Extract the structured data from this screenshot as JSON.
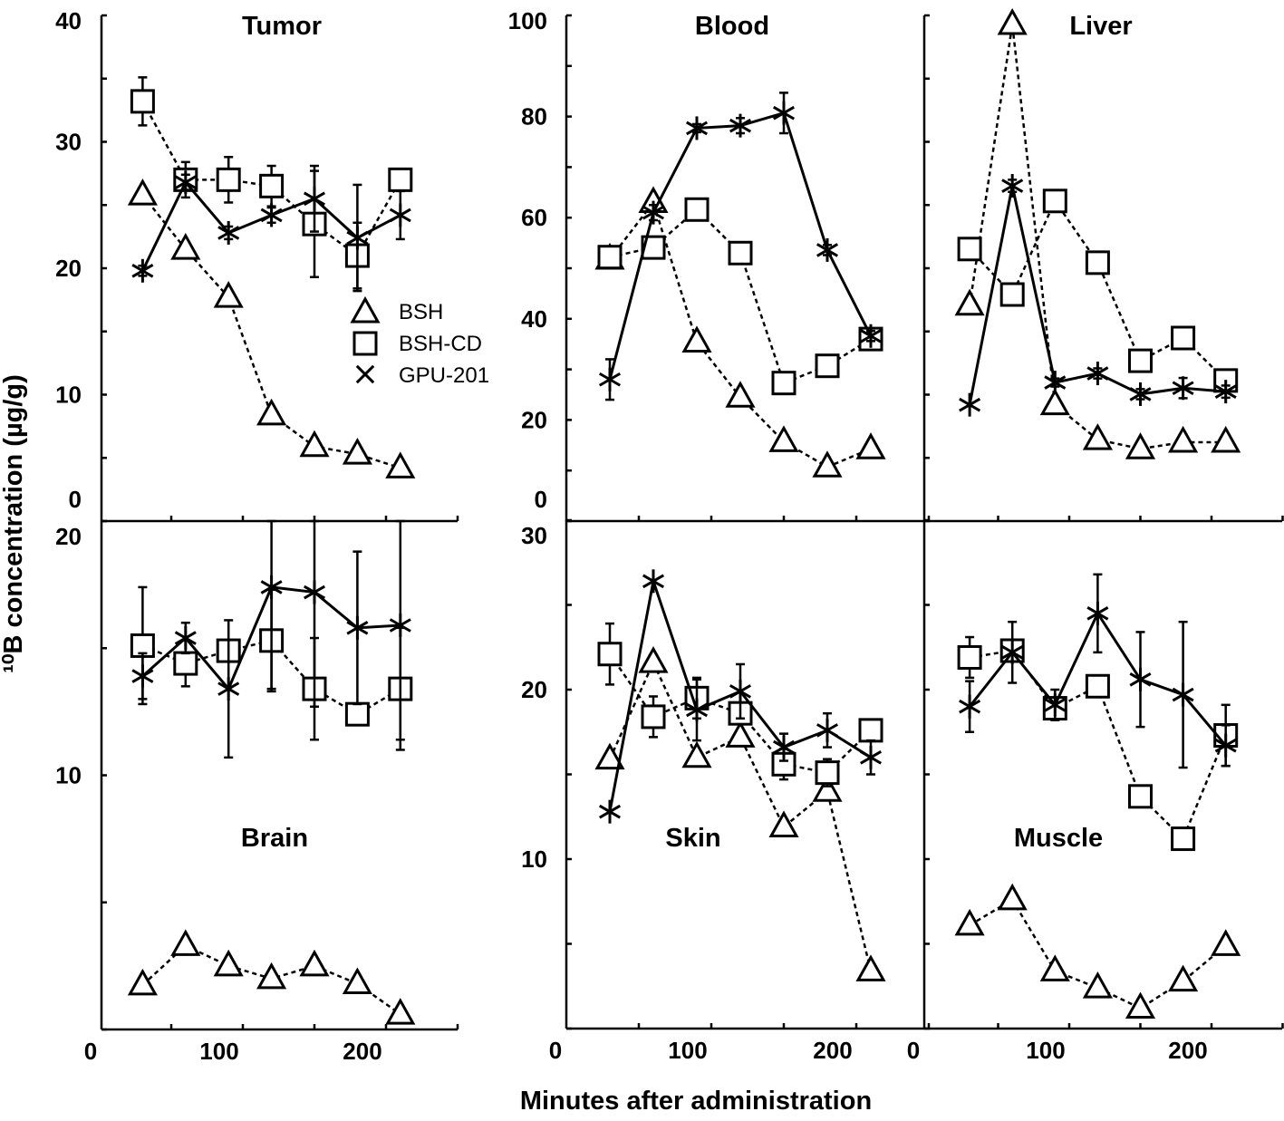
{
  "figure": {
    "ylabel": "¹⁰B concentration (µg/g)",
    "xlabel": "Minutes after administration",
    "legend": [
      "BSH",
      "BSH-CD",
      "GPU-201"
    ],
    "legend_placement": "inside Tumor panel, center-right",
    "line_color": "#000000",
    "background": "#ffffff"
  },
  "chart_data": [
    {
      "type": "line",
      "title": "Tumor",
      "xlim": [
        0,
        250
      ],
      "xticklabels": [
        "0",
        "100",
        "200"
      ],
      "ylim": [
        0,
        40
      ],
      "yticklabels": [
        "0",
        "10",
        "20",
        "30",
        "40"
      ],
      "x": [
        30,
        60,
        90,
        120,
        150,
        180,
        210
      ],
      "series": [
        {
          "name": "BSH",
          "marker": "triangle",
          "line": "dotted",
          "y": [
            25.8,
            21.5,
            17.7,
            8.4,
            5.9,
            5.3,
            4.2
          ],
          "err": [
            null,
            null,
            null,
            null,
            null,
            null,
            null
          ]
        },
        {
          "name": "BSH-CD",
          "marker": "square",
          "line": "dotted",
          "y": [
            33.2,
            27.0,
            27.0,
            26.5,
            23.5,
            21.0,
            27.0
          ],
          "err": [
            1.9,
            1.4,
            1.8,
            1.6,
            4.2,
            2.6,
            null
          ]
        },
        {
          "name": "GPU-201",
          "marker": "asterisk",
          "line": "solid",
          "y": [
            19.8,
            26.8,
            22.8,
            24.2,
            25.5,
            22.4,
            24.2
          ],
          "err": [
            0.4,
            0.6,
            0.5,
            0.6,
            2.6,
            4.2,
            1.9
          ]
        }
      ]
    },
    {
      "type": "line",
      "title": "Blood",
      "xlim": [
        0,
        250
      ],
      "xticklabels": [
        "0",
        "100",
        "200"
      ],
      "ylim": [
        0,
        100
      ],
      "yticklabels": [
        "0",
        "20",
        "40",
        "60",
        "80",
        "100"
      ],
      "x": [
        30,
        60,
        90,
        120,
        150,
        180,
        210
      ],
      "series": [
        {
          "name": "BSH",
          "marker": "triangle",
          "line": "dotted",
          "y": [
            51.8,
            63.0,
            35.4,
            24.5,
            15.7,
            10.7,
            14.3
          ],
          "err": [
            null,
            null,
            null,
            null,
            null,
            null,
            null
          ]
        },
        {
          "name": "BSH-CD",
          "marker": "square",
          "line": "dotted",
          "y": [
            52.2,
            54.1,
            61.6,
            53.0,
            27.3,
            30.7,
            36.0
          ],
          "err": [
            null,
            null,
            null,
            0.8,
            null,
            1.2,
            1.0
          ]
        },
        {
          "name": "GPU-201",
          "marker": "asterisk",
          "line": "solid",
          "y": [
            28.0,
            61.0,
            77.7,
            78.2,
            80.7,
            53.6,
            36.6
          ],
          "err": [
            4.0,
            1.5,
            0.8,
            1.5,
            4.0,
            1.0,
            1.0
          ]
        }
      ]
    },
    {
      "type": "line",
      "title": "Liver",
      "xlim": [
        0,
        250
      ],
      "xticklabels": [
        "0",
        "100",
        "200"
      ],
      "ylim": [
        0,
        100
      ],
      "yticklabels": [],
      "x": [
        30,
        60,
        90,
        120,
        150,
        180,
        210
      ],
      "series": [
        {
          "name": "BSH",
          "marker": "triangle",
          "line": "dotted",
          "y": [
            42.7,
            98.2,
            23.0,
            16.1,
            14.3,
            15.6,
            15.6
          ],
          "err": [
            null,
            null,
            null,
            null,
            null,
            null,
            null
          ]
        },
        {
          "name": "BSH-CD",
          "marker": "square",
          "line": "dotted",
          "y": [
            53.8,
            44.8,
            63.3,
            51.1,
            31.7,
            36.2,
            27.8
          ],
          "err": [
            null,
            null,
            null,
            1.2,
            2.0,
            null,
            null
          ]
        },
        {
          "name": "GPU-201",
          "marker": "asterisk",
          "line": "solid",
          "y": [
            23.0,
            66.3,
            27.4,
            29.2,
            25.1,
            26.3,
            25.6
          ],
          "err": [
            null,
            1.2,
            0.8,
            1.0,
            1.0,
            2.0,
            1.2
          ]
        }
      ]
    },
    {
      "type": "line",
      "title": "Brain",
      "xlim": [
        0,
        250
      ],
      "xticklabels": [
        "0",
        "100",
        "200"
      ],
      "ylim": [
        0,
        20
      ],
      "yticklabels": [
        "10",
        "20"
      ],
      "x": [
        30,
        60,
        90,
        120,
        150,
        180,
        210
      ],
      "series": [
        {
          "name": "BSH",
          "marker": "triangle",
          "line": "dotted",
          "y": [
            1.75,
            3.3,
            2.5,
            2.0,
            2.5,
            1.8,
            0.6
          ],
          "err": [
            null,
            null,
            null,
            null,
            null,
            null,
            null
          ]
        },
        {
          "name": "BSH-CD",
          "marker": "square",
          "line": "dotted",
          "y": [
            15.1,
            14.4,
            14.9,
            15.3,
            13.4,
            12.4,
            13.4
          ],
          "err": [
            2.3,
            0.9,
            null,
            2.0,
            2.0,
            null,
            2.4
          ]
        },
        {
          "name": "GPU-201",
          "marker": "asterisk",
          "line": "solid",
          "y": [
            13.9,
            15.4,
            13.4,
            17.4,
            17.2,
            15.8,
            15.9
          ],
          "err": [
            0.9,
            0.6,
            2.7,
            4.0,
            4.5,
            3.0,
            4.5
          ]
        }
      ]
    },
    {
      "type": "line",
      "title": "Skin",
      "xlim": [
        0,
        250
      ],
      "xticklabels": [
        "0",
        "100",
        "200"
      ],
      "ylim": [
        0,
        30
      ],
      "yticklabels": [
        "10",
        "20",
        "30"
      ],
      "x": [
        30,
        60,
        90,
        120,
        150,
        180,
        210
      ],
      "series": [
        {
          "name": "BSH",
          "marker": "triangle",
          "line": "dotted",
          "y": [
            15.9,
            21.6,
            16.0,
            17.2,
            11.9,
            14.0,
            3.4
          ],
          "err": [
            null,
            null,
            null,
            null,
            null,
            null,
            null
          ]
        },
        {
          "name": "BSH-CD",
          "marker": "square",
          "line": "dotted",
          "y": [
            22.1,
            18.4,
            19.5,
            18.6,
            15.6,
            15.1,
            17.6
          ],
          "err": [
            1.8,
            1.2,
            1.2,
            null,
            0.9,
            0.8,
            0.5
          ]
        },
        {
          "name": "GPU-201",
          "marker": "asterisk",
          "line": "solid",
          "y": [
            12.8,
            26.4,
            18.8,
            19.9,
            16.6,
            17.6,
            16.0
          ],
          "err": [
            null,
            null,
            1.8,
            1.6,
            0.8,
            1.0,
            1.0
          ]
        }
      ]
    },
    {
      "type": "line",
      "title": "Muscle",
      "xlim": [
        0,
        250
      ],
      "xticklabels": [
        "0",
        "100",
        "200"
      ],
      "ylim": [
        0,
        30
      ],
      "yticklabels": [],
      "x": [
        30,
        60,
        90,
        120,
        150,
        180,
        210
      ],
      "series": [
        {
          "name": "BSH",
          "marker": "triangle",
          "line": "dotted",
          "y": [
            6.1,
            7.6,
            3.4,
            2.4,
            1.2,
            2.8,
            4.9
          ],
          "err": [
            null,
            null,
            null,
            null,
            null,
            null,
            null
          ]
        },
        {
          "name": "BSH-CD",
          "marker": "square",
          "line": "dotted",
          "y": [
            21.9,
            22.3,
            18.9,
            20.2,
            13.7,
            11.2,
            17.3
          ],
          "err": [
            1.2,
            null,
            null,
            null,
            0.4,
            null,
            1.8
          ]
        },
        {
          "name": "GPU-201",
          "marker": "asterisk",
          "line": "solid",
          "y": [
            19.0,
            22.2,
            19.1,
            24.5,
            20.6,
            19.7,
            16.7
          ],
          "err": [
            1.5,
            1.8,
            0.9,
            2.3,
            2.8,
            4.3,
            1.2
          ]
        }
      ]
    }
  ]
}
